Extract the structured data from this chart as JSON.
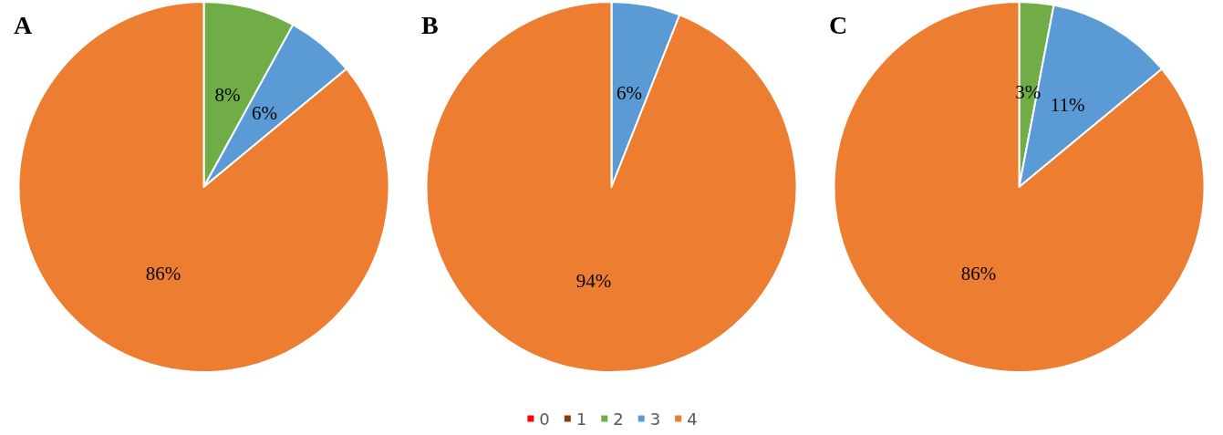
{
  "chart_data": [
    {
      "type": "pie",
      "title": "A",
      "values": [
        0,
        0,
        8,
        6,
        86
      ],
      "colors": [
        "#ff0000",
        "#843c0c",
        "#70ad47",
        "#5b9bd5",
        "#ed7d31"
      ],
      "value_labels": [
        null,
        null,
        "8%",
        "6%",
        "86%"
      ]
    },
    {
      "type": "pie",
      "title": "B",
      "categories": [
        "0",
        "1",
        "2",
        "3",
        "4"
      ],
      "values": [
        0,
        0,
        0,
        6,
        94
      ],
      "colors": [
        "#ff0000",
        "#843c0c",
        "#70ad47",
        "#5b9bd5",
        "#ed7d31"
      ],
      "value_labels": [
        null,
        null,
        null,
        "6%",
        "94%"
      ],
      "legend": "bottom"
    },
    {
      "type": "pie",
      "title": "C",
      "values": [
        0,
        0,
        3,
        11,
        86
      ],
      "colors": [
        "#ff0000",
        "#843c0c",
        "#70ad47",
        "#5b9bd5",
        "#ed7d31"
      ],
      "value_labels": [
        null,
        null,
        "3%",
        "11%",
        "86%"
      ]
    }
  ]
}
